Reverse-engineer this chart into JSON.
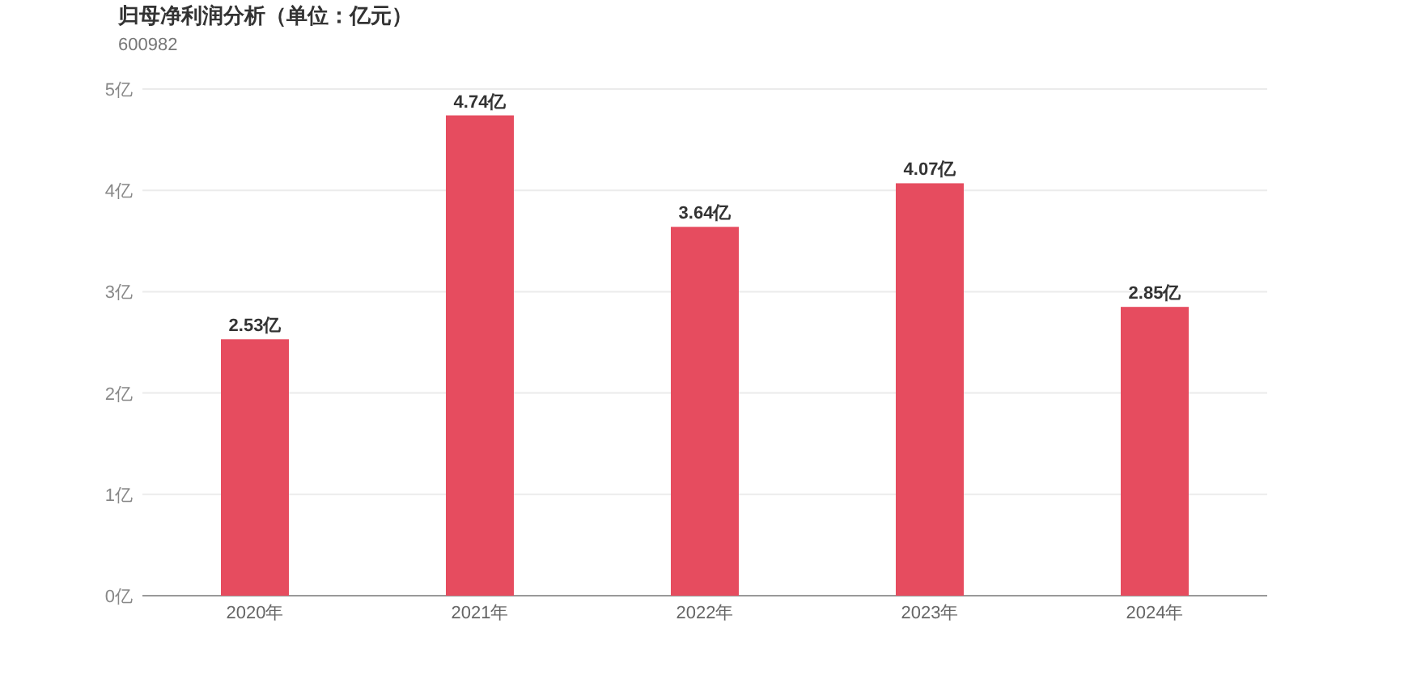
{
  "chart_data": {
    "type": "bar",
    "title": "归母净利润分析（单位：亿元）",
    "subtitle": "600982",
    "categories": [
      "2020年",
      "2021年",
      "2022年",
      "2023年",
      "2024年"
    ],
    "values": [
      2.53,
      4.74,
      3.64,
      4.07,
      2.85
    ],
    "value_labels": [
      "2.53亿",
      "4.74亿",
      "3.64亿",
      "4.07亿",
      "2.85亿"
    ],
    "color": "#e64c5f",
    "ylim": [
      0,
      5
    ],
    "yticks": [
      {
        "value": 0,
        "label": "0亿"
      },
      {
        "value": 1,
        "label": "1亿"
      },
      {
        "value": 2,
        "label": "2亿"
      },
      {
        "value": 3,
        "label": "3亿"
      },
      {
        "value": 4,
        "label": "4亿"
      },
      {
        "value": 5,
        "label": "5亿"
      }
    ],
    "grid": "y"
  }
}
